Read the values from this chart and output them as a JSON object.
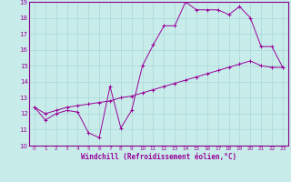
{
  "xlabel": "Windchill (Refroidissement éolien,°C)",
  "bg_color": "#c8ecea",
  "line_color": "#990099",
  "grid_color": "#a8d8d8",
  "spine_color": "#880088",
  "xlim": [
    -0.5,
    23.5
  ],
  "ylim": [
    10,
    19
  ],
  "xticks": [
    0,
    1,
    2,
    3,
    4,
    5,
    6,
    7,
    8,
    9,
    10,
    11,
    12,
    13,
    14,
    15,
    16,
    17,
    18,
    19,
    20,
    21,
    22,
    23
  ],
  "yticks": [
    10,
    11,
    12,
    13,
    14,
    15,
    16,
    17,
    18,
    19
  ],
  "line1_x": [
    0,
    1,
    2,
    3,
    4,
    5,
    6,
    7,
    8,
    9,
    10,
    11,
    12,
    13,
    14,
    15,
    16,
    17,
    18,
    19,
    20,
    21,
    22,
    23
  ],
  "line1_y": [
    12.4,
    11.6,
    12.0,
    12.2,
    12.1,
    10.8,
    10.5,
    13.7,
    11.1,
    12.2,
    15.0,
    16.3,
    17.5,
    17.5,
    19.0,
    18.5,
    18.5,
    18.5,
    18.2,
    18.7,
    18.0,
    16.2,
    16.2,
    14.9
  ],
  "line2_x": [
    0,
    1,
    2,
    3,
    4,
    5,
    6,
    7,
    8,
    9,
    10,
    11,
    12,
    13,
    14,
    15,
    16,
    17,
    18,
    19,
    20,
    21,
    22,
    23
  ],
  "line2_y": [
    12.4,
    12.0,
    12.2,
    12.4,
    12.5,
    12.6,
    12.7,
    12.8,
    13.0,
    13.1,
    13.3,
    13.5,
    13.7,
    13.9,
    14.1,
    14.3,
    14.5,
    14.7,
    14.9,
    15.1,
    15.3,
    15.0,
    14.9,
    14.9
  ]
}
